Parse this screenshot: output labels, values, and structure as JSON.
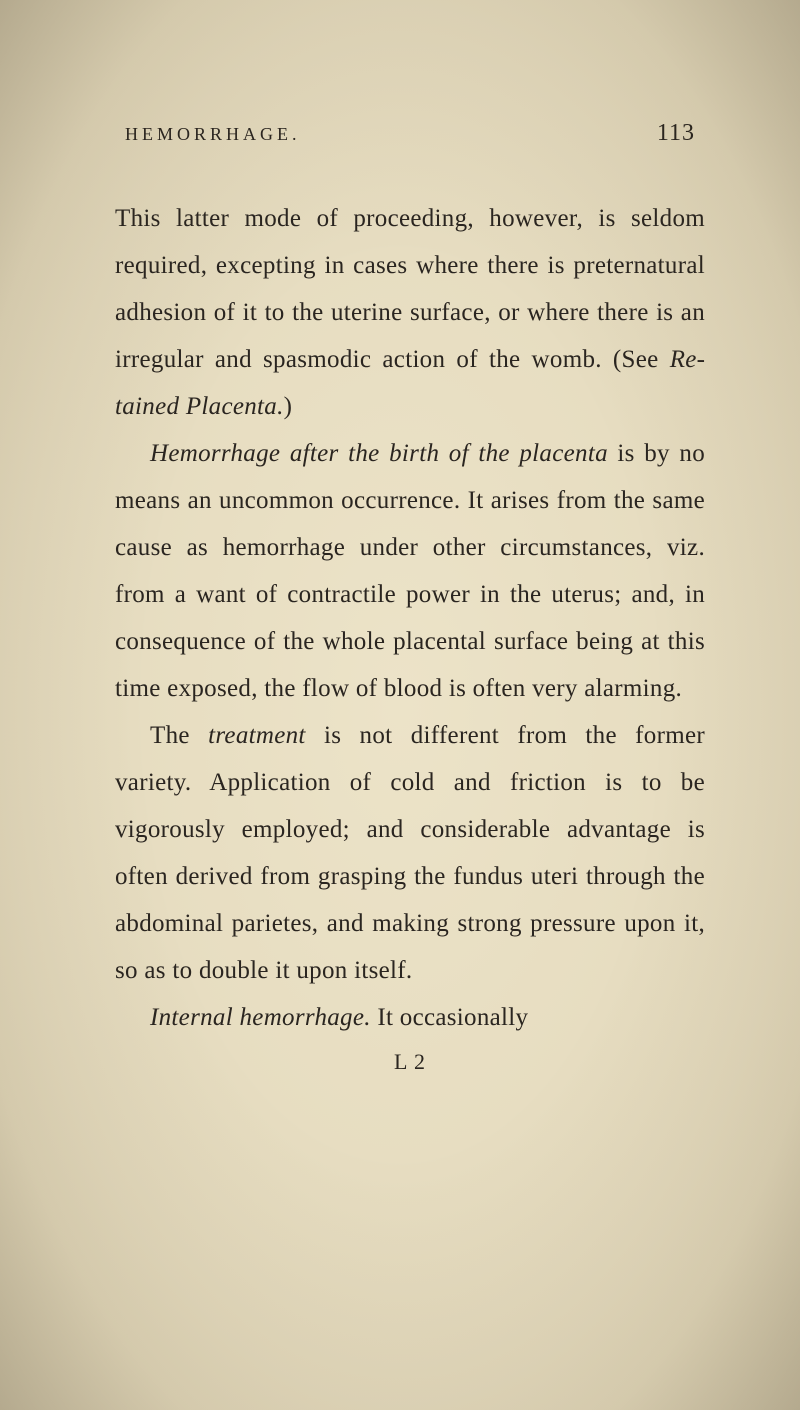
{
  "page": {
    "running_head": "HEMORRHAGE.",
    "number": "113",
    "signature": "L 2",
    "background_color": "#e8dfc4",
    "text_color": "#2a2520",
    "body_fontsize": 25,
    "header_fontsize": 18,
    "pagenum_fontsize": 24,
    "line_height": 1.88
  },
  "paragraphs": {
    "p1": {
      "text_before_italic": "This latter mode of proceeding, however, is seldom required, excepting in cases where there is preternatural adhesion of it to the uterine surface, or where there is an irregular and spasmodic action of the womb. (See ",
      "italic": "Re­tained Placenta.",
      "text_after_italic": ")"
    },
    "p2": {
      "italic_lead": "Hemorrhage after the birth of the placenta",
      "rest": " is by no means an uncommon occurrence. It arises from the same cause as hemorrhage under other circumstances, viz. from a want of contractile power in the uterus; and, in consequence of the whole placental surface being at this time exposed, the flow of blood is often very alarming."
    },
    "p3": {
      "before": "The ",
      "italic": "treatment",
      "after": " is not different from the for­mer variety. Application of cold and friction is to be vigorously employed; and conside­rable advantage is often derived from grasping the fundus uteri through the abdominal pari­etes, and making strong pressure upon it, so as to double it upon itself."
    },
    "p4": {
      "italic": "Internal hemorrhage.",
      "after": " It occasionally"
    }
  }
}
